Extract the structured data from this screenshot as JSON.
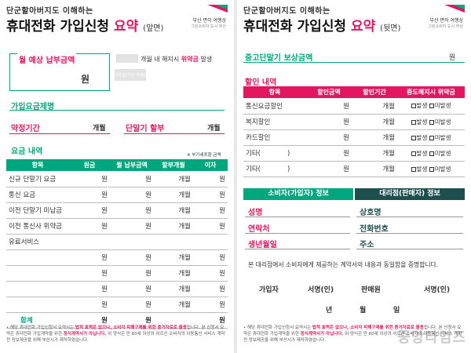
{
  "colors": {
    "accent_green": "#00a77e",
    "accent_pink": "#e2175f",
    "dark_teal": "#1f4e4f"
  },
  "common": {
    "subtitle": "단군할아버지도  이해하는",
    "title_main": "휴대전화 가입신청 ",
    "title_emph": "요약",
    "logo_line1": "부산 면허 여행상",
    "logo_line2": "그린소비자 도시 부산"
  },
  "front": {
    "side": "(앞면)",
    "monthly_label": "월 예상 납부금액",
    "won": "원",
    "hint1": "(약정기간 적용)",
    "hint2": "가입비 포함 월 예상 납부금액 계약서 기재",
    "cancel_mid": "개월 내 해지시",
    "cancel_emph": "위약금",
    "cancel_tail": "발생",
    "plan_label": "가입요금제명",
    "contract_label": "약정기간",
    "months": "개월",
    "installment_label": "단말기 할부",
    "fee_label": "요금 내역",
    "vat_note": "※ 부가세포함 금액",
    "columns": [
      "항목",
      "원금",
      "월 납부금액",
      "할부개월",
      "이자"
    ],
    "rows": [
      [
        "신규 단말기 요금",
        "원",
        "원",
        "개월",
        "원"
      ],
      [
        "통신 요금",
        "원",
        "원",
        "개월",
        "원"
      ],
      [
        "이전 단말기 미납금",
        "원",
        "원",
        "개월",
        "원"
      ],
      [
        "이전 통신사 위약금",
        "원",
        "원",
        "개월",
        "원"
      ],
      [
        "유료서비스",
        "",
        "",
        "",
        ""
      ],
      [
        "",
        "원",
        "원",
        "개월",
        "원"
      ],
      [
        "",
        "원",
        "원",
        "개월",
        "원"
      ],
      [
        "",
        "원",
        "원",
        "개월",
        "원"
      ],
      [
        "",
        "원",
        "원",
        "개월",
        "원"
      ]
    ],
    "total_row": [
      "합계",
      "원",
      "원",
      "",
      "원"
    ],
    "footer": [
      [
        "• 해당 휴대전화 가입신청서 요약서는 ",
        ""
      ],
      [
        "법적 효력은 없으나, 소비자 피해구제를 위한 증거자료로 활용",
        "hl"
      ],
      [
        "됩니다. 본 신청서 요약은 휴대전화 가입계약을 위한 ",
        ""
      ],
      [
        "정식계약서가 아닙니다.",
        "hl"
      ],
      [
        " 위 양식은 만 60세 이상의 어르신 소비자의 이동통신 서비스 계약 전 정보제공을 위해 부산시가 제작하였습니다.",
        ""
      ]
    ]
  },
  "back": {
    "side": "(뒷면)",
    "tradein_label": "중고단말기 보상금액",
    "won": "원",
    "discount_label": "할인 내역",
    "d_columns": [
      "항목",
      "할인금액",
      "할인기간",
      "중도해지시 위약금"
    ],
    "d_rows": [
      [
        "통신요금할인",
        "원",
        "개월"
      ],
      [
        "복지할인",
        "원",
        "개월"
      ],
      [
        "카드할인",
        "원",
        "개월"
      ],
      [
        "기타(",
        "원",
        "개월"
      ],
      [
        "기타(",
        "원",
        "개월"
      ]
    ],
    "paren_close": ")",
    "penalty_yes": "발생",
    "penalty_no": "미발생",
    "consumer_head": "소비자(가입자) 정보",
    "agent_head": "대리점(판매자) 정보",
    "c_name": "성명",
    "c_phone": "연락처",
    "c_birth": "생년월일",
    "a_company": "상호명",
    "a_phone": "전화번호",
    "a_address": "주소",
    "confirm": "본 대리점에서 소비자에게 제공하는 계약서의 내용과 동일함을 증명합니다.",
    "subscriber": "가입자",
    "sign": "서명(인)",
    "seller": "판매원",
    "date_y": "년",
    "date_m": "월",
    "date_d": "일",
    "footer": [
      [
        "• 해당 휴대전화 가입신청서 요약서는 ",
        ""
      ],
      [
        "법적 효력은 없으나, 소비자 피해구제를 위한 증거자료로 활용",
        "hl"
      ],
      [
        "됩니다. 본 신청서 요약은 휴대전화 가입계약을 위한 ",
        ""
      ],
      [
        "정식계약서가 아닙니다.",
        "hl"
      ],
      [
        " 위 양식은 만 60세 이상의 어르신 소비자의 이동통신 서비스 계약 전 정보제공을 위해 부산시가 제작하였습니다.",
        ""
      ]
    ]
  },
  "watermark": "중앙타임즈"
}
